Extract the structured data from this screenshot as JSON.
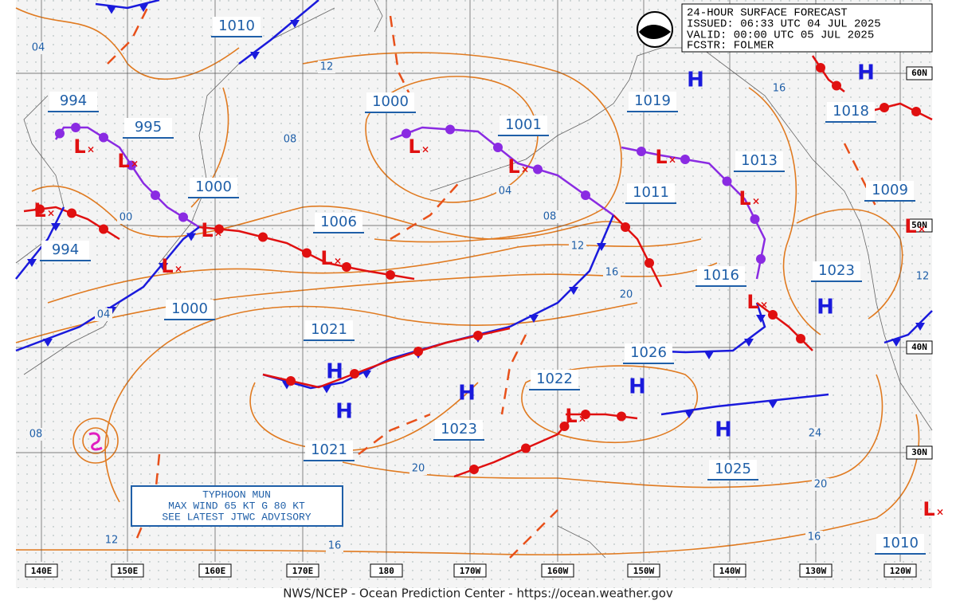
{
  "header": {
    "lines": [
      "24-HOUR SURFACE FORECAST",
      "ISSUED: 06:33 UTC 04 JUL 2025",
      "VALID:  00:00 UTC 05 JUL 2025",
      "FCSTR:  FOLMER"
    ]
  },
  "footer": "NWS/NCEP - Ocean Prediction Center - https://ocean.weather.gov",
  "typhoon_box": [
    "TYPHOON MUN",
    "MAX WIND 65 KT G 80 KT",
    "SEE LATEST JTWC ADVISORY"
  ],
  "pressure_labels": [
    "1010",
    "994",
    "995",
    "1000",
    "1001",
    "1019",
    "1013",
    "1018",
    "1009",
    "1000",
    "1011",
    "1006",
    "994",
    "1016",
    "1023",
    "1000",
    "1021",
    "1026",
    "1022",
    "1023",
    "1021",
    "1025",
    "1010"
  ],
  "isobar_labels": [
    "04",
    "12",
    "08",
    "00",
    "04",
    "08",
    "12",
    "16",
    "20",
    "04",
    "16",
    "08",
    "12",
    "16",
    "20",
    "24",
    "20",
    "16",
    "12"
  ],
  "high_symbol": "H",
  "low_symbol": "L",
  "longitudes": [
    "140E",
    "150E",
    "160E",
    "170E",
    "180",
    "170W",
    "160W",
    "150W",
    "140W",
    "130W",
    "120W"
  ],
  "latitudes": [
    "60N",
    "50N",
    "40N",
    "30N"
  ]
}
